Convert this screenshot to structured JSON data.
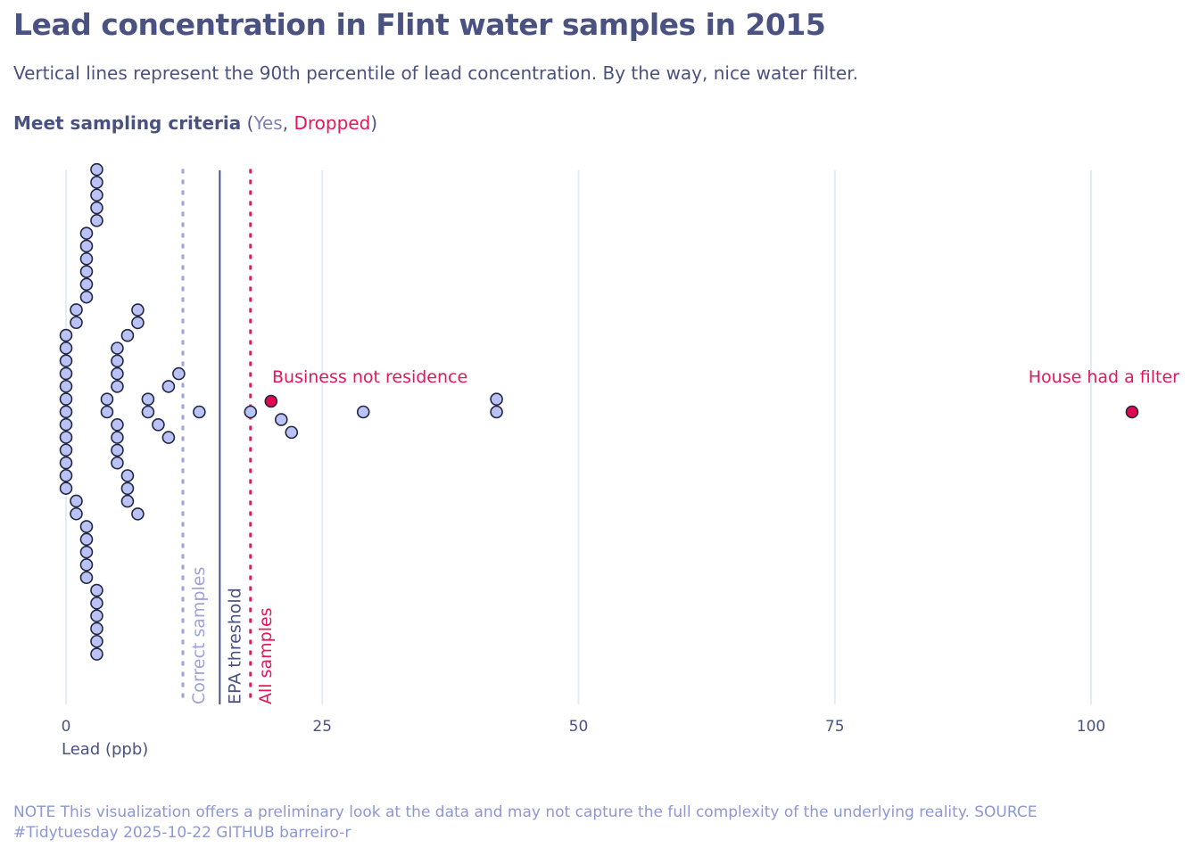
{
  "header": {
    "title": "Lead concentration in Flint water samples in 2015",
    "subtitle": "Vertical lines represent the 90th percentile of lead concentration. By the way, nice water filter.",
    "legend_label": "Meet sampling criteria",
    "legend_open": " (",
    "legend_yes": "Yes",
    "legend_sep": ", ",
    "legend_dropped": "Dropped",
    "legend_close": ")"
  },
  "caption": "NOTE This visualization offers a preliminary look at the data and may not capture the full complexity of the underlying reality. SOURCE #Tidytuesday 2025-10-22 GITHUB barreiro-r",
  "colors": {
    "yes_fill": "#b9c3f7",
    "dropped_fill": "#e0094f",
    "stroke": "#23263f",
    "grid": "#e3ecf9",
    "correct_line": "#9ba2dd",
    "epa_line": "#4a5282",
    "all_line": "#e3175a"
  },
  "chart_data": {
    "type": "scatter",
    "subtype": "beeswarm",
    "title": "Lead concentration in Flint water samples in 2015",
    "xlabel": "Lead (ppb)",
    "ylabel": "",
    "xlim": [
      0,
      105
    ],
    "x_ticks": [
      0,
      25,
      50,
      75,
      100
    ],
    "x_tick_labels": [
      "0",
      "25",
      "50",
      "75",
      "100"
    ],
    "grid": "vertical",
    "reference_lines": [
      {
        "name": "Correct samples",
        "value": 11.4,
        "style": "dotted",
        "color": "#9ba2dd"
      },
      {
        "name": "EPA threshold",
        "value": 15,
        "style": "solid",
        "color": "#4a5282"
      },
      {
        "name": "All samples",
        "value": 18,
        "style": "dotted",
        "color": "#e3175a"
      }
    ],
    "annotations": [
      {
        "text": "Business not residence",
        "x": 20
      },
      {
        "text": "House had a filter",
        "x": 104
      }
    ],
    "series": [
      {
        "name": "Yes",
        "values": [
          0,
          0,
          0,
          0,
          0,
          0,
          0,
          0,
          0,
          0,
          0,
          0,
          0,
          1,
          1,
          1,
          1,
          2,
          2,
          2,
          2,
          2,
          2,
          2,
          2,
          2,
          2,
          2,
          3,
          3,
          3,
          3,
          3,
          3,
          3,
          3,
          3,
          3,
          3,
          4,
          4,
          5,
          5,
          5,
          5,
          5,
          5,
          5,
          5,
          6,
          6,
          6,
          6,
          7,
          7,
          7,
          8,
          8,
          9,
          10,
          10,
          11,
          13,
          18,
          21,
          22,
          29,
          42,
          42
        ]
      },
      {
        "name": "Dropped",
        "values": [
          20,
          104
        ]
      }
    ]
  }
}
